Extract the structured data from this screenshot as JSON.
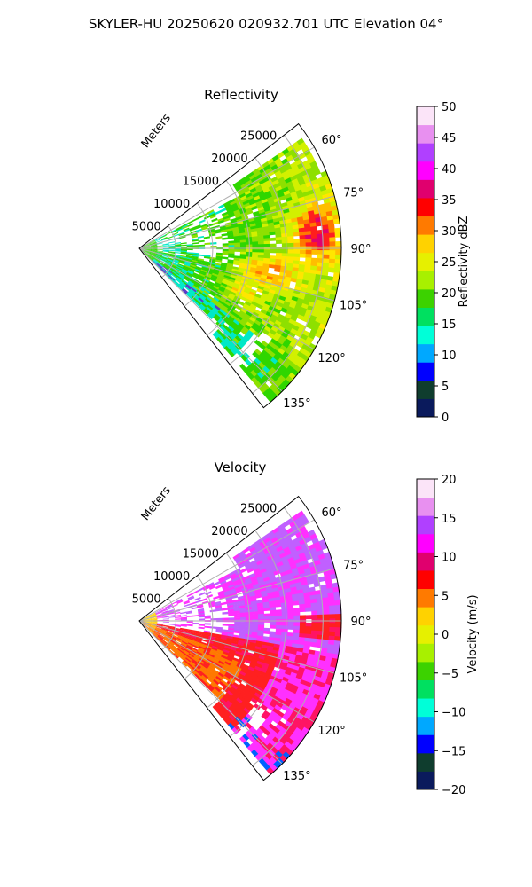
{
  "figure": {
    "suptitle": "SKYLER-HU  20250620  020932.701 UTC Elevation 04°"
  },
  "chart_data": [
    {
      "type": "heatmap",
      "projection": "polar-sector",
      "title": "Reflectivity",
      "range_label": "Meters",
      "range_ticks": [
        "5000",
        "10000",
        "15000",
        "20000",
        "25000"
      ],
      "range_max": 27500,
      "azimuth_range_deg": [
        52,
        142
      ],
      "azimuth_ticks": [
        "60°",
        "75°",
        "90°",
        "105°",
        "120°",
        "135°"
      ],
      "azimuth_tick_values": [
        60,
        75,
        90,
        105,
        120,
        135
      ],
      "grid": true,
      "colorbar": {
        "label": "Reflectivity dBZ",
        "min": 0,
        "max": 50,
        "ticks": [
          "0",
          "5",
          "10",
          "15",
          "20",
          "25",
          "30",
          "35",
          "40",
          "45",
          "50"
        ],
        "colors": [
          "#0a1a5c",
          "#0f3d2e",
          "#0000ff",
          "#00a8ff",
          "#00ffd8",
          "#00e060",
          "#3cd200",
          "#a8f000",
          "#e6f000",
          "#ffd200",
          "#ff7a00",
          "#ff0000",
          "#e0006e",
          "#ff00ff",
          "#b040ff",
          "#e890f0",
          "#fbe4f8"
        ]
      }
    },
    {
      "type": "heatmap",
      "projection": "polar-sector",
      "title": "Velocity",
      "range_label": "Meters",
      "range_ticks": [
        "5000",
        "10000",
        "15000",
        "20000",
        "25000"
      ],
      "range_max": 27500,
      "azimuth_range_deg": [
        52,
        142
      ],
      "azimuth_ticks": [
        "60°",
        "75°",
        "90°",
        "105°",
        "120°",
        "135°"
      ],
      "azimuth_tick_values": [
        60,
        75,
        90,
        105,
        120,
        135
      ],
      "grid": true,
      "colorbar": {
        "label": "Velocity (m/s)",
        "min": -20,
        "max": 20,
        "ticks": [
          "−20",
          "−15",
          "−10",
          "−5",
          "0",
          "5",
          "10",
          "15",
          "20"
        ],
        "colors": [
          "#0a1a5c",
          "#0f3d2e",
          "#0000ff",
          "#00a8ff",
          "#00ffd8",
          "#00e060",
          "#3cd200",
          "#a8f000",
          "#e6f000",
          "#ffd200",
          "#ff7a00",
          "#ff0000",
          "#e0006e",
          "#ff00ff",
          "#b040ff",
          "#e890f0",
          "#fbe4f8"
        ]
      }
    }
  ]
}
